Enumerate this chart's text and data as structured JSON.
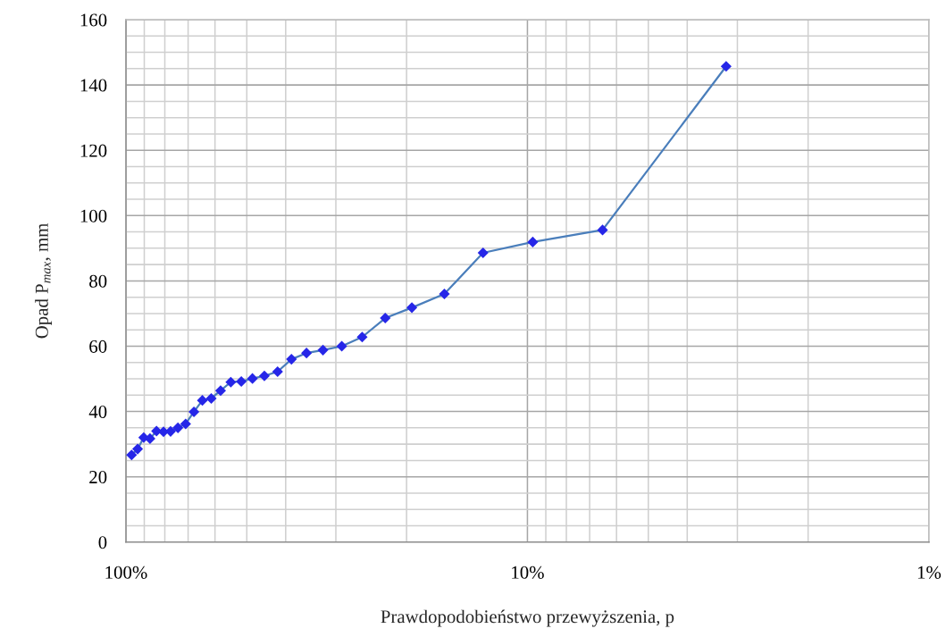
{
  "chart_data": {
    "type": "line",
    "xlabel": "Prawdopodobieństwo przewyższenia, p",
    "ylabel": "Opad P$_{max}$, mm",
    "x": [
      96.8,
      93.5,
      90.3,
      87.1,
      83.9,
      80.6,
      77.4,
      74.2,
      71.0,
      67.7,
      64.5,
      61.3,
      58.1,
      54.8,
      51.6,
      48.4,
      45.2,
      41.9,
      38.7,
      35.5,
      32.3,
      29.0,
      25.8,
      22.6,
      19.4,
      16.1,
      12.9,
      9.7,
      6.5,
      3.2
    ],
    "series": [
      {
        "color": "#4a7ebb",
        "values": [
          26.7,
          28.5,
          32.0,
          31.7,
          34.0,
          33.8,
          33.9,
          35.0,
          36.2,
          39.9,
          43.4,
          44.0,
          46.4,
          49.0,
          49.2,
          50.1,
          50.9,
          52.2,
          56.0,
          57.9,
          58.8,
          60.0,
          62.8,
          68.6,
          71.8,
          76.0,
          88.6,
          91.9,
          95.6,
          145.7
        ],
        "colors": [
          "#2626e8",
          "#2626e8",
          "#2626e8",
          "#2626e8",
          "#2626e8",
          "#2626e8",
          "#2626e8",
          "#2626e8",
          "#2626e8",
          "#2626e8",
          "#2626e8",
          "#2626e8",
          "#2626e8",
          "#2626e8",
          "#2626e8",
          "#2626e8",
          "#2626e8",
          "#2626e8",
          "#2626e8",
          "#2626e8",
          "#2626e8",
          "#2626e8",
          "#2626e8",
          "#2626e8",
          "#2626e8",
          "#2626e8",
          "#2626e8",
          "#2626e8",
          "#2626e8",
          "#2626e8"
        ]
      }
    ],
    "log": "x",
    "xlim": [
      100,
      1
    ],
    "xticks": [
      {
        "value": 100,
        "label": "100%"
      },
      {
        "value": 90,
        "label": null
      },
      {
        "value": 80,
        "label": null
      },
      {
        "value": 70,
        "label": null
      },
      {
        "value": 60,
        "label": null
      },
      {
        "value": 50,
        "label": null
      },
      {
        "value": 40,
        "label": null
      },
      {
        "value": 30,
        "label": null
      },
      {
        "value": 20,
        "label": null
      },
      {
        "value": 10,
        "label": "10%"
      },
      {
        "value": 9,
        "label": null
      },
      {
        "value": 8,
        "label": null
      },
      {
        "value": 7,
        "label": null
      },
      {
        "value": 6,
        "label": null
      },
      {
        "value": 5,
        "label": null
      },
      {
        "value": 4,
        "label": null
      },
      {
        "value": 3,
        "label": null
      },
      {
        "value": 2,
        "label": null
      },
      {
        "value": 1,
        "label": "1%"
      }
    ],
    "ylim": [
      0,
      160
    ],
    "yticks": [
      0,
      {
        "value": 5,
        "label": null
      },
      {
        "value": 10,
        "label": null
      },
      {
        "value": 15,
        "label": null
      },
      20,
      {
        "value": 25,
        "label": null
      },
      {
        "value": 30,
        "label": null
      },
      {
        "value": 35,
        "label": null
      },
      40,
      {
        "value": 45,
        "label": null
      },
      {
        "value": 50,
        "label": null
      },
      {
        "value": 55,
        "label": null
      },
      60,
      {
        "value": 65,
        "label": null
      },
      {
        "value": 70,
        "label": null
      },
      {
        "value": 75,
        "label": null
      },
      80,
      {
        "value": 85,
        "label": null
      },
      {
        "value": 90,
        "label": null
      },
      {
        "value": 95,
        "label": null
      },
      100,
      {
        "value": 105,
        "label": null
      },
      {
        "value": 110,
        "label": null
      },
      {
        "value": 115,
        "label": null
      },
      120,
      {
        "value": 125,
        "label": null
      },
      {
        "value": 130,
        "label": null
      },
      {
        "value": 135,
        "label": null
      },
      140,
      {
        "value": 145,
        "label": null
      },
      {
        "value": 150,
        "label": null
      },
      {
        "value": 155,
        "label": null
      },
      160
    ],
    "grid": true,
    "marker": "diamond",
    "line_style": "solid"
  }
}
